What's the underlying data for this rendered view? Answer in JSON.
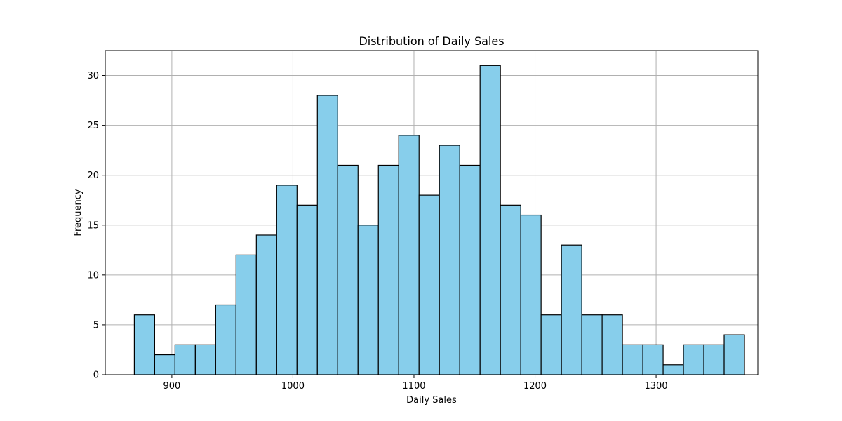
{
  "chart_data": {
    "type": "bar",
    "title": "Distribution of Daily Sales",
    "xlabel": "Daily Sales",
    "ylabel": "Frequency",
    "bin_start": 869,
    "bin_width": 16.8,
    "values": [
      6,
      2,
      3,
      3,
      7,
      12,
      14,
      19,
      17,
      28,
      21,
      15,
      21,
      24,
      18,
      23,
      21,
      31,
      17,
      16,
      6,
      13,
      6,
      6,
      3,
      3,
      1,
      3,
      3,
      4
    ],
    "xlim": [
      845,
      1384
    ],
    "ylim": [
      0,
      32.5
    ],
    "xticks": [
      900,
      1000,
      1100,
      1200,
      1300
    ],
    "yticks": [
      0,
      5,
      10,
      15,
      20,
      25,
      30
    ],
    "grid": true,
    "colors": {
      "bar_fill": "#87ceeb",
      "bar_edge": "#000000",
      "grid": "#b0b0b0"
    }
  }
}
